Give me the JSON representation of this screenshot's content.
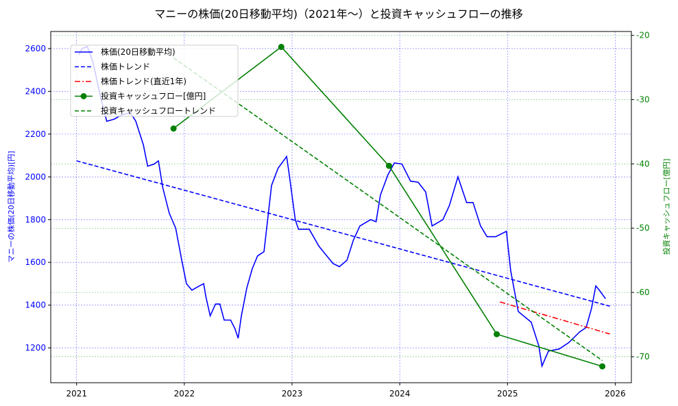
{
  "chart_data": {
    "type": "line",
    "title": "マニーの株価(20日移動平均)（2021年〜）と投資キャッシュフローの推移",
    "ylabel": "マニーの株価(20日移動平均)[円]",
    "y2label": "投資キャッシュフロー[億円]",
    "xlabel": "",
    "xlim": [
      2020.76,
      2026.15
    ],
    "ylim": [
      1037,
      2680
    ],
    "y2lim": [
      -74.05,
      -19.4
    ],
    "xticks": [
      "2021",
      "2022",
      "2023",
      "2024",
      "2025",
      "2026"
    ],
    "xtick_values": [
      2021,
      2022,
      2023,
      2024,
      2025,
      2026
    ],
    "yticks": [
      1200,
      1400,
      1600,
      1800,
      2000,
      2200,
      2400,
      2600
    ],
    "y2ticks": [
      -70,
      -60,
      -50,
      -40,
      -30,
      -20
    ],
    "grid": true,
    "legend_position": "top-left",
    "colors": {
      "price": "#0000ff",
      "trend": "#0000ff",
      "recent": "#ff0000",
      "cf": "#008000",
      "cftrend": "#008000"
    },
    "series": [
      {
        "name": "株価(20日移動平均)",
        "axis": "left",
        "style": "solid",
        "x": [
          2021.02,
          2021.05,
          2021.1,
          2021.15,
          2021.22,
          2021.28,
          2021.35,
          2021.42,
          2021.5,
          2021.55,
          2021.62,
          2021.66,
          2021.72,
          2021.76,
          2021.8,
          2021.86,
          2021.92,
          2021.98,
          2022.02,
          2022.07,
          2022.14,
          2022.18,
          2022.2,
          2022.24,
          2022.29,
          2022.33,
          2022.37,
          2022.43,
          2022.47,
          2022.5,
          2022.53,
          2022.58,
          2022.63,
          2022.68,
          2022.74,
          2022.81,
          2022.87,
          2022.95,
          2022.97,
          2023.03,
          2023.06,
          2023.16,
          2023.25,
          2023.38,
          2023.44,
          2023.51,
          2023.57,
          2023.63,
          2023.73,
          2023.78,
          2023.82,
          2023.89,
          2023.95,
          2024.02,
          2024.1,
          2024.17,
          2024.24,
          2024.3,
          2024.4,
          2024.46,
          2024.54,
          2024.62,
          2024.68,
          2024.75,
          2024.81,
          2024.89,
          2024.99,
          2025.03,
          2025.1,
          2025.16,
          2025.22,
          2025.29,
          2025.32,
          2025.38,
          2025.48,
          2025.57,
          2025.67,
          2025.73,
          2025.78,
          2025.82,
          2025.86,
          2025.91
        ],
        "y": [
          2570,
          2600,
          2610,
          2540,
          2380,
          2260,
          2270,
          2290,
          2300,
          2260,
          2150,
          2050,
          2060,
          2075,
          1950,
          1830,
          1760,
          1600,
          1500,
          1470,
          1490,
          1500,
          1440,
          1350,
          1405,
          1405,
          1330,
          1330,
          1290,
          1245,
          1350,
          1480,
          1570,
          1630,
          1650,
          1960,
          2040,
          2095,
          2025,
          1800,
          1755,
          1755,
          1675,
          1595,
          1580,
          1610,
          1705,
          1770,
          1800,
          1790,
          1915,
          2010,
          2065,
          2060,
          1980,
          1975,
          1930,
          1770,
          1800,
          1865,
          2000,
          1880,
          1880,
          1770,
          1720,
          1720,
          1745,
          1560,
          1370,
          1345,
          1320,
          1210,
          1115,
          1185,
          1195,
          1225,
          1275,
          1295,
          1385,
          1490,
          1465,
          1430
        ]
      },
      {
        "name": "株価トレンド",
        "axis": "left",
        "style": "dashed",
        "x": [
          2021.0,
          2025.95
        ],
        "y": [
          2075,
          1395
        ]
      },
      {
        "name": "株価トレンド(直近1年)",
        "axis": "left",
        "style": "dashdot",
        "x": [
          2024.93,
          2025.95
        ],
        "y": [
          1415,
          1265
        ]
      },
      {
        "name": "投資キャッシュフロー[億円]",
        "axis": "right",
        "style": "solid-marker",
        "x": [
          2021.9,
          2022.9,
          2023.9,
          2024.9,
          2025.88
        ],
        "y": [
          -34.5,
          -21.8,
          -40.3,
          -66.5,
          -71.5
        ]
      },
      {
        "name": "投資キャッシュフロートレンド",
        "axis": "right",
        "style": "dashed",
        "x": [
          2021.9,
          2025.88
        ],
        "y": [
          -23.5,
          -70.6
        ]
      }
    ]
  }
}
